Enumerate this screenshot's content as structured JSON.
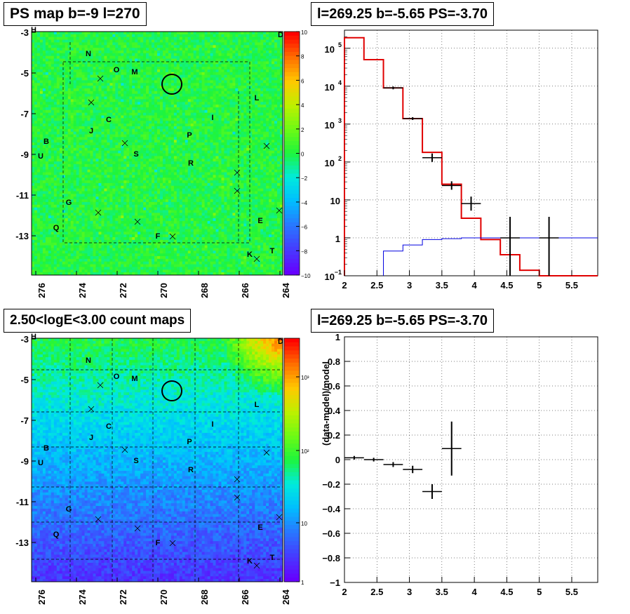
{
  "panels": {
    "top_left_title": "PS map b=-9 l=270",
    "top_right_title": "l=269.25 b=-5.65 PS=-3.70",
    "bottom_left_title": "2.50<logE<3.00 count maps",
    "bottom_right_title": "l=269.25 b=-5.65 PS=-3.70"
  },
  "chart_data": [
    {
      "type": "heatmap",
      "title": "PS map b=-9 l=270",
      "xlabel": "",
      "ylabel": "",
      "x_ticks": [
        "276",
        "274",
        "272",
        "270",
        "268",
        "266",
        "264"
      ],
      "y_ticks": [
        "-3",
        "-5",
        "-7",
        "-9",
        "-11",
        "-13"
      ],
      "colorbar_ticks": [
        "10",
        "8",
        "6",
        "4",
        "2",
        "0",
        "−2",
        "−4",
        "−6",
        "−8",
        "−10"
      ],
      "colorbar_range": [
        -10,
        10
      ],
      "background_level": 0,
      "source_labels": [
        "N",
        "O",
        "M",
        "L",
        "C",
        "I",
        "J",
        "P",
        "B",
        "S",
        "U",
        "R",
        "G",
        "E",
        "Q",
        "F",
        "K",
        "T",
        "D",
        "H"
      ],
      "marked_source": {
        "l": 269.25,
        "b": -5.65
      }
    },
    {
      "type": "line",
      "title": "l=269.25 b=-5.65 PS=-3.70",
      "xlabel": "",
      "ylabel": "",
      "xlim": [
        2,
        5.9
      ],
      "ylim": [
        0.1,
        300000
      ],
      "y_scale": "log",
      "x_ticks": [
        "2",
        "2.5",
        "3",
        "3.5",
        "4",
        "4.5",
        "5",
        "5.5"
      ],
      "y_ticks": [
        "10^-1",
        "1",
        "10",
        "10^2",
        "10^3",
        "10^4",
        "10^5"
      ],
      "grid": true,
      "series": [
        {
          "color": "#e00000",
          "bin_edges": [
            2.0,
            2.3,
            2.6,
            2.9,
            3.2,
            3.5,
            3.8,
            4.1,
            4.4,
            4.7,
            5.0,
            5.9
          ],
          "values": [
            190000,
            50000,
            9000,
            1400,
            180,
            26,
            3.3,
            0.9,
            0.36,
            0.14,
            0.1
          ]
        },
        {
          "color": "#0000e0",
          "bin_edges": [
            2.6,
            2.9,
            3.2,
            3.5,
            3.8,
            4.1,
            4.4,
            4.7,
            5.0,
            5.9
          ],
          "values": [
            0.45,
            0.65,
            0.9,
            0.95,
            1.0,
            1.0,
            1.0,
            1.0,
            1.0
          ]
        },
        {
          "color": "#000000",
          "points": [
            [
              2.75,
              9000
            ],
            [
              3.05,
              1400
            ],
            [
              3.35,
              130
            ],
            [
              3.65,
              24
            ],
            [
              3.95,
              8
            ],
            [
              4.55,
              1
            ],
            [
              5.15,
              1
            ]
          ]
        }
      ]
    },
    {
      "type": "heatmap",
      "title": "2.50<logE<3.00 count maps",
      "xlabel": "",
      "ylabel": "",
      "x_ticks": [
        "276",
        "274",
        "272",
        "270",
        "268",
        "266",
        "264"
      ],
      "y_ticks": [
        "-3",
        "-5",
        "-7",
        "-9",
        "-11",
        "-13"
      ],
      "colorbar_scale": "log",
      "colorbar_ticks": [
        "10^3",
        "10^2",
        "10",
        "1"
      ],
      "source_labels": [
        "N",
        "O",
        "M",
        "L",
        "C",
        "I",
        "J",
        "P",
        "B",
        "S",
        "U",
        "R",
        "G",
        "E",
        "Q",
        "F",
        "K",
        "T",
        "D",
        "H"
      ]
    },
    {
      "type": "scatter",
      "title": "l=269.25 b=-5.65 PS=-3.70",
      "xlabel": "",
      "ylabel": "(data-model)/model",
      "xlim": [
        2,
        5.9
      ],
      "ylim": [
        -1,
        1
      ],
      "x_ticks": [
        "2",
        "2.5",
        "3",
        "3.5",
        "4",
        "4.5",
        "5",
        "5.5"
      ],
      "y_ticks": [
        "1",
        "0.8",
        "0.6",
        "0.4",
        "0.2",
        "0",
        "−0.2",
        "−0.4",
        "−0.6",
        "−0.8",
        "−1"
      ],
      "grid": true,
      "points": [
        {
          "x": 2.15,
          "y": 0.015,
          "err": 0.015,
          "xerr": 0.15
        },
        {
          "x": 2.45,
          "y": 0.0,
          "err": 0.015,
          "xerr": 0.15
        },
        {
          "x": 2.75,
          "y": -0.04,
          "err": 0.02,
          "xerr": 0.15
        },
        {
          "x": 3.05,
          "y": -0.08,
          "err": 0.03,
          "xerr": 0.15
        },
        {
          "x": 3.35,
          "y": -0.26,
          "err": 0.06,
          "xerr": 0.15
        },
        {
          "x": 3.65,
          "y": 0.09,
          "err": 0.22,
          "xerr": 0.15
        }
      ]
    }
  ]
}
